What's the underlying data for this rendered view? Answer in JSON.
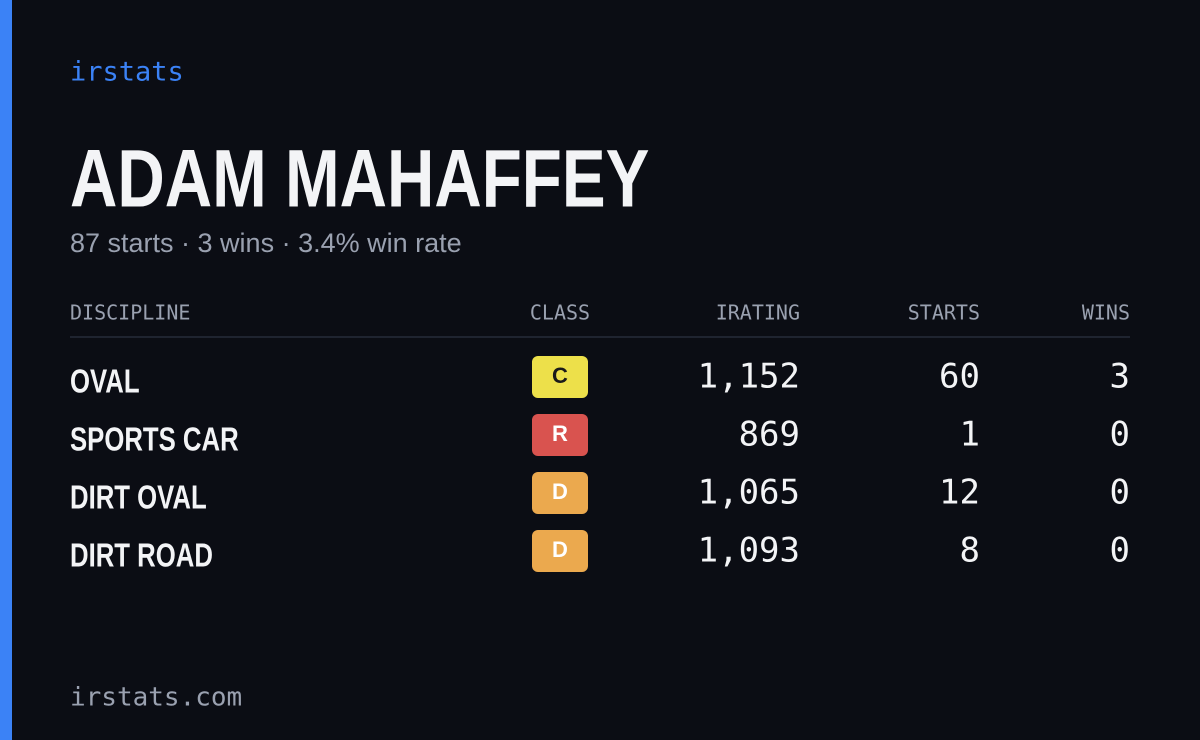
{
  "brand": "irstats",
  "profile": {
    "name": "ADAM MAHAFFEY",
    "summary": "87 starts · 3 wins · 3.4% win rate"
  },
  "table": {
    "headers": [
      "DISCIPLINE",
      "CLASS",
      "IRATING",
      "STARTS",
      "WINS"
    ],
    "rows": [
      {
        "discipline": "OVAL",
        "class": "C",
        "class_color": "#ede04a",
        "irating": "1,152",
        "starts": "60",
        "wins": "3"
      },
      {
        "discipline": "SPORTS CAR",
        "class": "R",
        "class_color": "#d9534f",
        "irating": "869",
        "starts": "1",
        "wins": "0"
      },
      {
        "discipline": "DIRT OVAL",
        "class": "D",
        "class_color": "#eba94e",
        "irating": "1,065",
        "starts": "12",
        "wins": "0"
      },
      {
        "discipline": "DIRT ROAD",
        "class": "D",
        "class_color": "#eba94e",
        "irating": "1,093",
        "starts": "8",
        "wins": "0"
      }
    ]
  },
  "footer": "irstats.com"
}
